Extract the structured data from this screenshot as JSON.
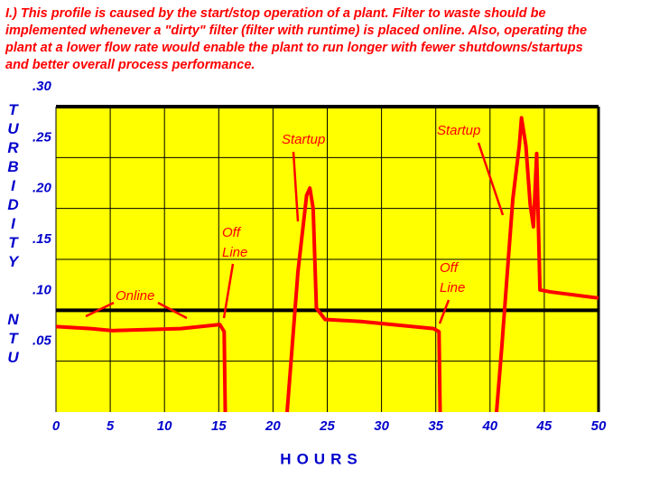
{
  "chart_data": {
    "type": "line",
    "title": "I.)  This profile is caused by the start/stop operation of a plant.  Filter to waste should be implemented whenever a \"dirty\" filter (filter with runtime) is placed online.  Also, operating the plant at a lower flow rate would enable the plant to run longer with fewer shutdowns/startups and better overall process performance.",
    "x_label": "HOURS",
    "y_label": [
      "TURBIDITY",
      "NTU"
    ],
    "series": [
      {
        "color": "#ff0000",
        "x": [
          0,
          3.2,
          5.2,
          11.5,
          15.1,
          15.5,
          15.6,
          null,
          21.3,
          22.3,
          23.1,
          23.4,
          23.7,
          24,
          24.8,
          28.1,
          34.8,
          35.3,
          35.4,
          null,
          40.6,
          41.1,
          41.6,
          42.1,
          42.7,
          42.9,
          43.3,
          43.7,
          44.0,
          44.3,
          44.6,
          45.6,
          50
        ],
        "values": [
          0.084,
          0.082,
          0.08,
          0.082,
          0.086,
          0.079,
          0,
          null,
          0,
          0.138,
          0.213,
          0.22,
          0.2,
          0.102,
          0.091,
          0.089,
          0.082,
          0.079,
          0,
          null,
          0,
          0.066,
          0.138,
          0.209,
          0.262,
          0.289,
          0.262,
          0.204,
          0.182,
          0.254,
          0.12,
          0.118,
          0.112
        ]
      }
    ],
    "xlim": [
      0,
      50
    ],
    "xticks": [
      0,
      5,
      10,
      15,
      20,
      25,
      30,
      35,
      40,
      45,
      50
    ],
    "ylim": [
      0,
      0.3
    ],
    "yticks": [
      {
        "value": 0.05,
        "label": ".05"
      },
      {
        "value": 0.1,
        "label": ".10"
      },
      {
        "value": 0.15,
        "label": ".15"
      },
      {
        "value": 0.2,
        "label": ".20"
      },
      {
        "value": 0.25,
        "label": ".25"
      },
      {
        "value": 0.3,
        "label": ".30"
      }
    ],
    "reference_line": 0.1,
    "grid": true,
    "annotations": [
      {
        "lines": [
          "Online"
        ]
      },
      {
        "lines": [
          "Off",
          "Line"
        ]
      },
      {
        "lines": [
          "Startup"
        ]
      },
      {
        "lines": [
          "Off",
          "Line"
        ]
      },
      {
        "lines": [
          "Startup"
        ]
      }
    ]
  }
}
